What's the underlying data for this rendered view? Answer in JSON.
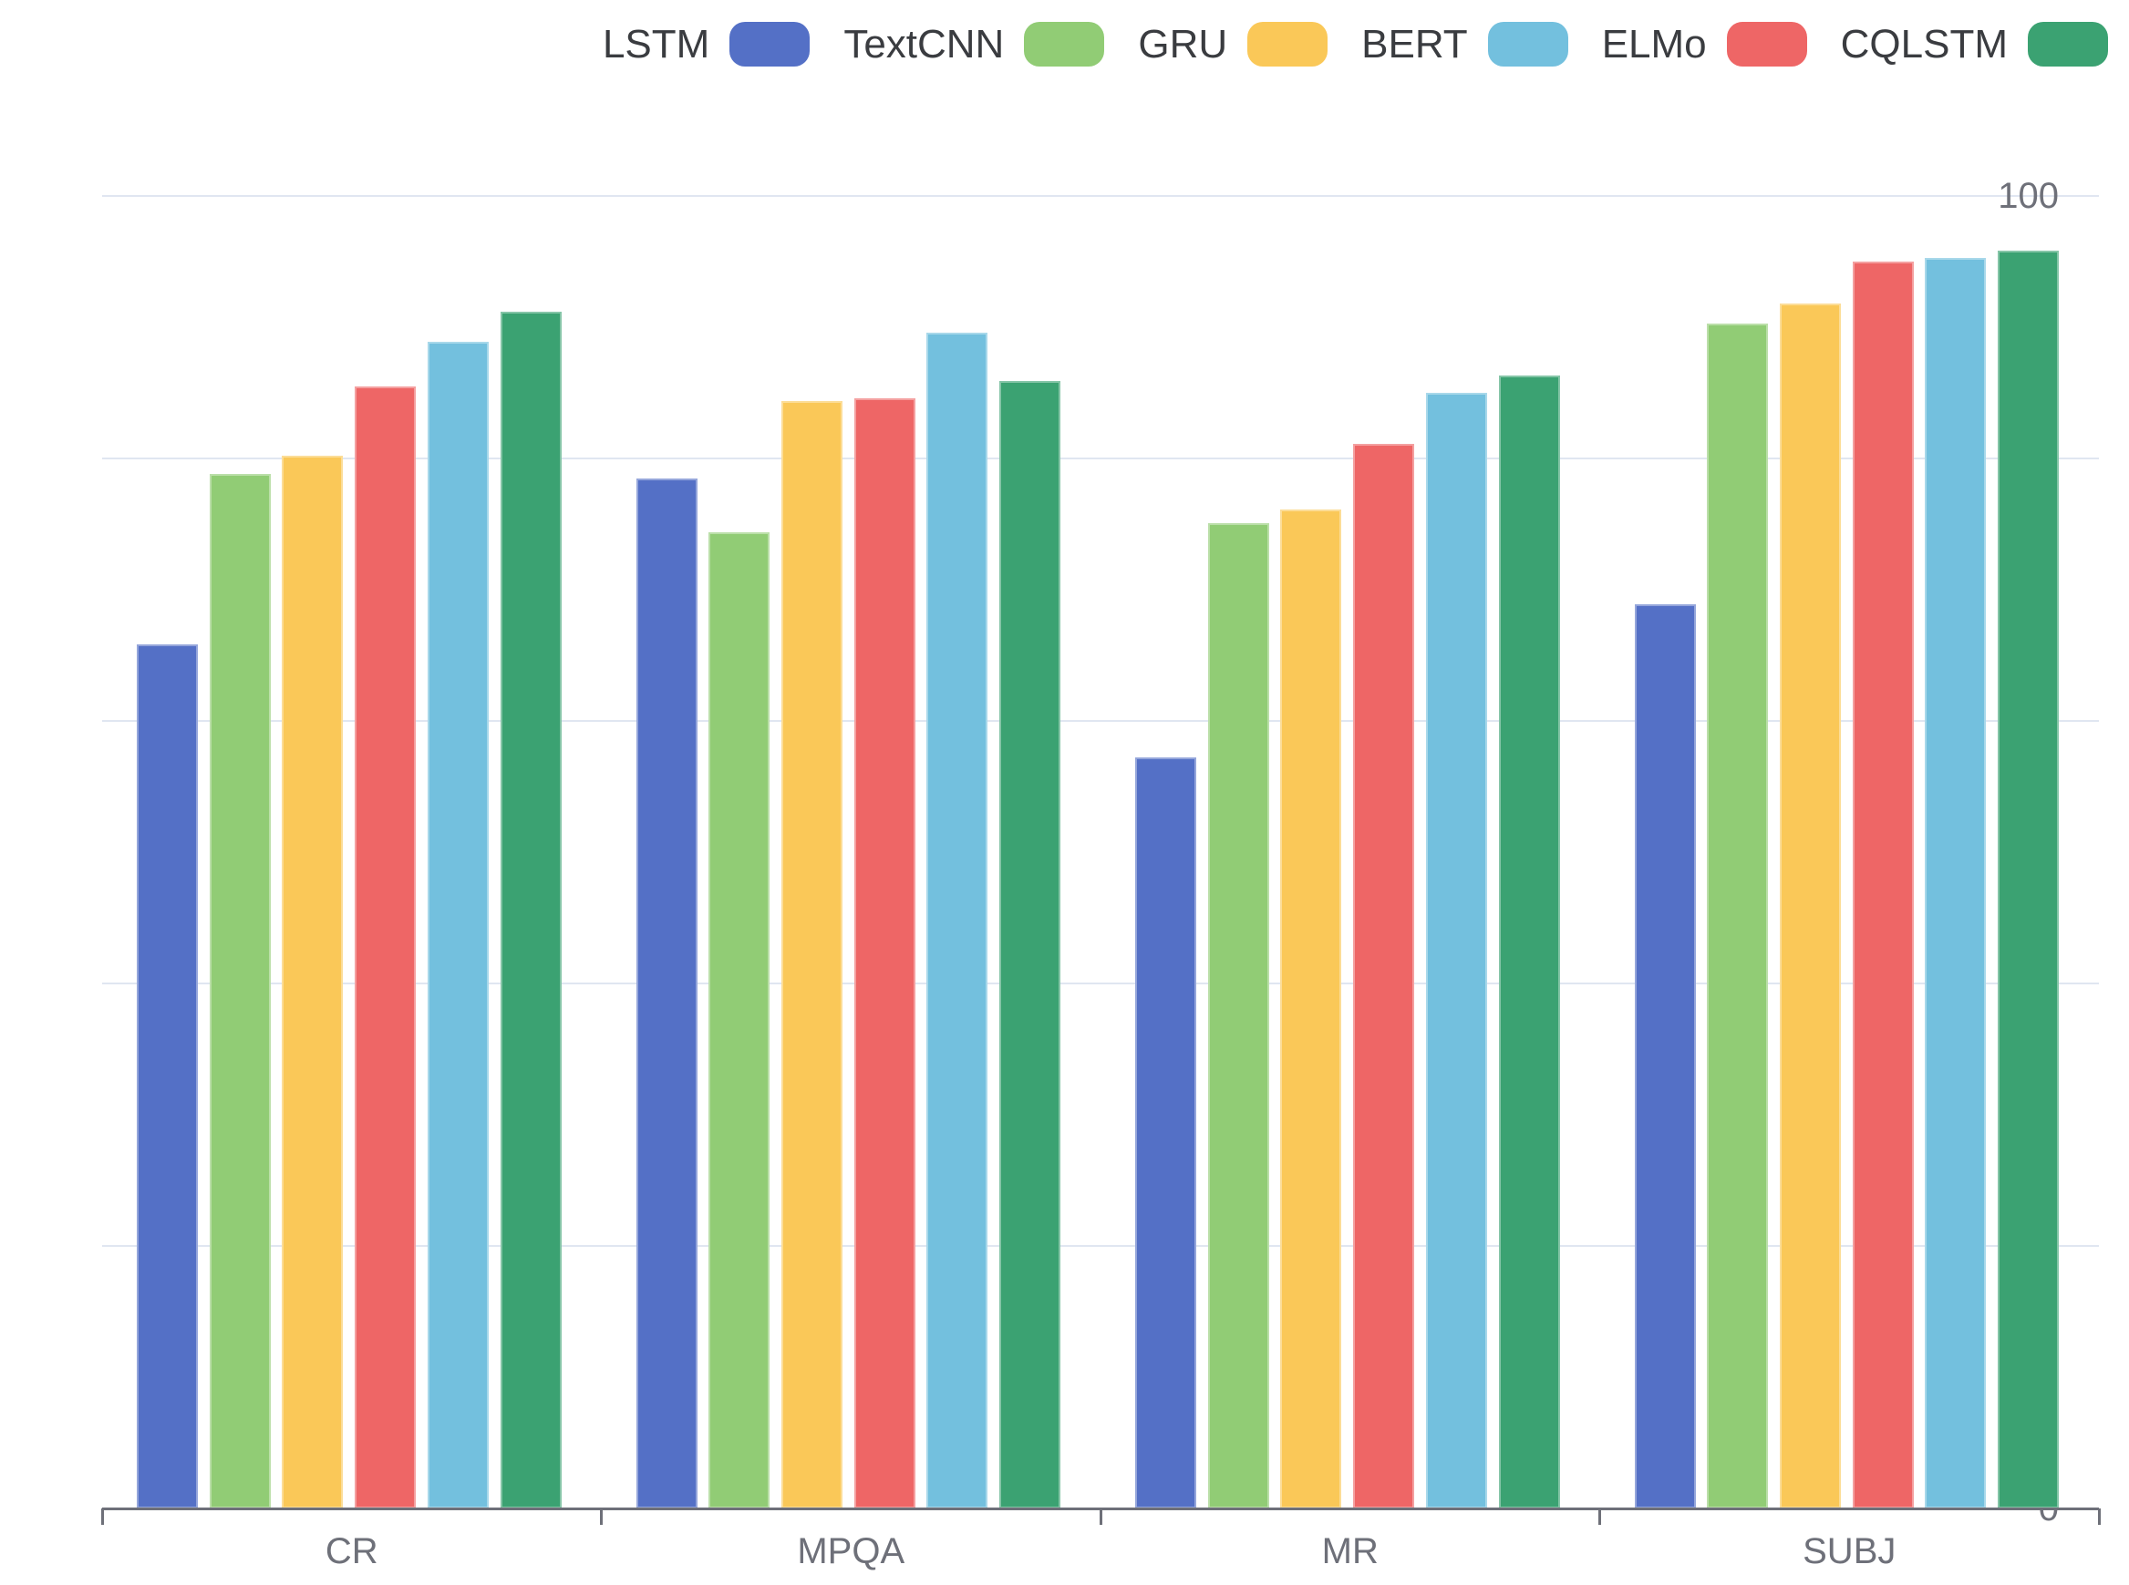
{
  "chart_data": {
    "type": "bar",
    "title": "",
    "xlabel": "",
    "ylabel": "",
    "categories": [
      "CR",
      "MPQA",
      "MR",
      "SUBJ"
    ],
    "series": [
      {
        "name": "LSTM",
        "color": "#5470C6",
        "values": [
          65.8,
          78.5,
          57.2,
          68.9
        ]
      },
      {
        "name": "TextCNN",
        "color": "#91CC75",
        "values": [
          78.8,
          74.4,
          75.1,
          90.3
        ]
      },
      {
        "name": "GRU",
        "color": "#FAC858",
        "values": [
          80.2,
          84.4,
          76.1,
          91.8
        ]
      },
      {
        "name": "ELMo",
        "color": "#EE6666",
        "values": [
          85.5,
          84.6,
          81.1,
          95.0
        ]
      },
      {
        "name": "BERT",
        "color": "#73C0DE",
        "values": [
          88.9,
          89.6,
          85.0,
          95.3
        ]
      },
      {
        "name": "CQLSTM",
        "color": "#3BA272",
        "values": [
          91.2,
          85.9,
          86.3,
          95.8
        ]
      }
    ],
    "legend": {
      "position": "top-right",
      "items": [
        "LSTM",
        "TextCNN",
        "GRU",
        "BERT",
        "ELMo",
        "CQLSTM"
      ]
    },
    "y_axis": {
      "min": 0,
      "max": 100,
      "ticks": [
        0,
        20,
        40,
        60,
        80,
        100
      ]
    },
    "grid": true,
    "bar_group_order_note": "bars left-to-right in each group: LSTM, TextCNN, GRU, ELMo, BERT, CQLSTM"
  },
  "colors": {
    "background": "#FFFFFF",
    "grid_line": "#E0E6F1",
    "axis_line": "#6E7079",
    "axis_label": "#6E7079",
    "legend_text": "#3A3C40"
  }
}
